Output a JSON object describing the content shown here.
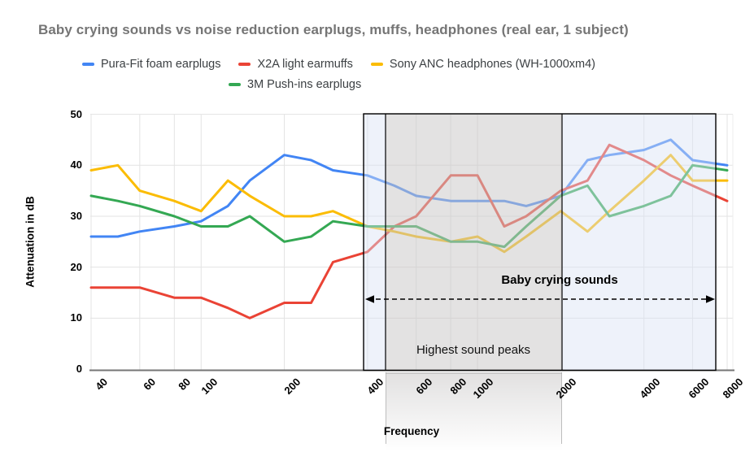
{
  "title": "Baby crying sounds vs noise reduction earplugs, muffs, headphones (real ear, 1 subject)",
  "legend": {
    "rows": [
      [
        0,
        1,
        2
      ],
      [
        3
      ]
    ]
  },
  "chart_data": {
    "type": "line",
    "title": "Baby crying sounds vs noise reduction earplugs, muffs, headphones (real ear, 1 subject)",
    "xlabel": "Frequency",
    "ylabel": "Attenuation in dB",
    "x_scale": "log",
    "grid": true,
    "legend_position": "top",
    "ylim": [
      0,
      50
    ],
    "y_ticks": [
      0,
      10,
      20,
      30,
      40,
      50
    ],
    "x_tick_values": [
      40,
      60,
      80,
      100,
      200,
      400,
      600,
      800,
      1000,
      2000,
      4000,
      6000,
      8000
    ],
    "x_tick_labels": [
      "40",
      "60",
      "80",
      "100",
      "200",
      "400",
      "600",
      "800",
      "1000",
      "2000",
      "4000",
      "6000",
      "8000"
    ],
    "x": [
      40,
      50,
      60,
      80,
      100,
      125,
      150,
      200,
      250,
      300,
      400,
      500,
      600,
      800,
      1000,
      1250,
      1500,
      2000,
      2500,
      3000,
      4000,
      5000,
      6000,
      8000
    ],
    "series": [
      {
        "name": "Pura-Fit foam earplugs",
        "color": "#4285F4",
        "values": [
          26,
          26,
          27,
          28,
          29,
          32,
          37,
          42,
          41,
          39,
          38,
          36,
          34,
          33,
          33,
          33,
          32,
          34,
          41,
          42,
          43,
          45,
          41,
          40
        ]
      },
      {
        "name": "X2A light earmuffs",
        "color": "#EA4335",
        "values": [
          16,
          16,
          16,
          14,
          14,
          12,
          10,
          13,
          13,
          21,
          23,
          28,
          30,
          38,
          38,
          28,
          30,
          35,
          37,
          44,
          41,
          38,
          36,
          33
        ]
      },
      {
        "name": "Sony ANC headphones (WH-1000xm4)",
        "color": "#FBBC04",
        "values": [
          39,
          40,
          35,
          33,
          31,
          37,
          34,
          30,
          30,
          31,
          28,
          27,
          26,
          25,
          26,
          23,
          26,
          31,
          27,
          31,
          37,
          42,
          37,
          37
        ]
      },
      {
        "name": "3M Push-ins earplugs",
        "color": "#34A853",
        "values": [
          34,
          33,
          32,
          30,
          28,
          28,
          30,
          25,
          26,
          29,
          28,
          28,
          28,
          25,
          25,
          24,
          28,
          34,
          36,
          30,
          32,
          34,
          40,
          39
        ]
      }
    ],
    "annotations": {
      "baby_region": {
        "label": "Baby crying sounds",
        "x_from_hz": 380,
        "x_to_hz": 7100,
        "style": "dashed-double-arrow"
      },
      "peaks_region": {
        "label": "Highest sound peaks",
        "x_from_hz": 460,
        "x_to_hz": 2000,
        "style": "shaded-box"
      }
    }
  }
}
